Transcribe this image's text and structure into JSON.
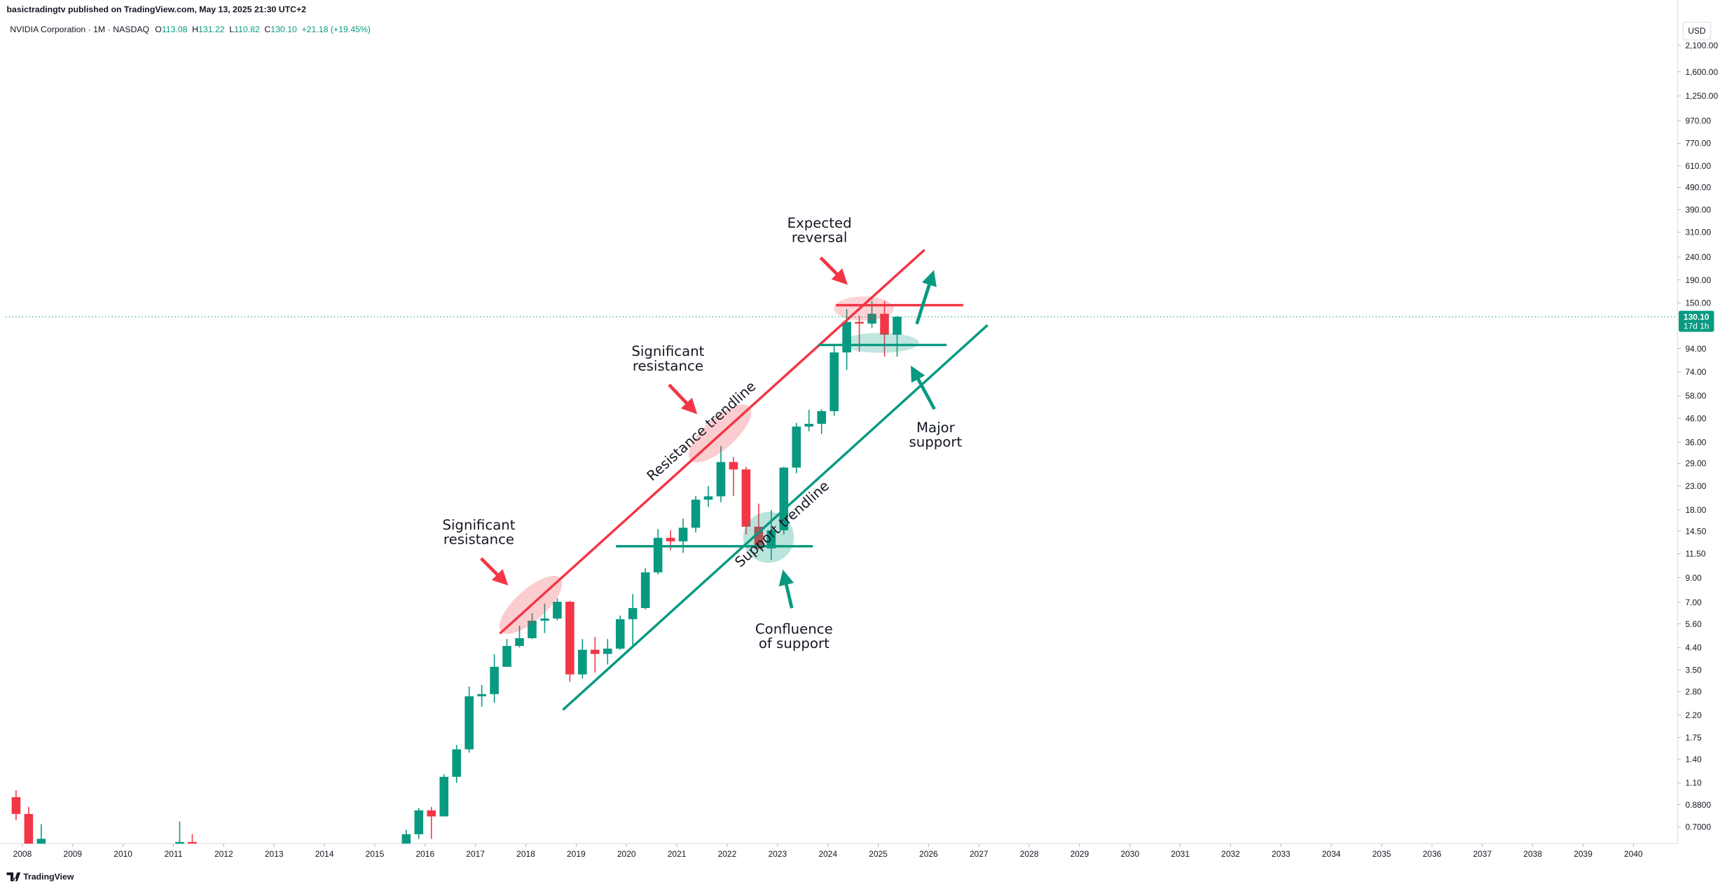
{
  "header": {
    "publisher": "basictradingtv published on TradingView.com, May 13, 2025 21:30 UTC+2"
  },
  "footer": {
    "brand": "TradingView"
  },
  "chart_data": {
    "type": "candlestick",
    "symbol": "NVIDIA Corporation · 1M · NASDAQ",
    "legend": [
      {
        "label": "O",
        "value": "113.08"
      },
      {
        "label": "H",
        "value": "131.22"
      },
      {
        "label": "L",
        "value": "110.82"
      },
      {
        "label": "C",
        "value": "130.10"
      }
    ],
    "change": "+21.18 (+19.45%)",
    "currency": "USD",
    "last_price": {
      "value": 130.1,
      "label": "130.10"
    },
    "countdown": "17d 1h",
    "up_color": "#089981",
    "down_color": "#f23645",
    "log_scale": true,
    "grid": false,
    "x": [
      "2007-10",
      "2008-01",
      "2008-04",
      "2011-01",
      "2011-04",
      "2015-07",
      "2015-10",
      "2016-01",
      "2016-04",
      "2016-07",
      "2016-10",
      "2017-01",
      "2017-04",
      "2017-07",
      "2017-10",
      "2018-01",
      "2018-04",
      "2018-07",
      "2018-10",
      "2019-01",
      "2019-04",
      "2019-07",
      "2019-10",
      "2020-01",
      "2020-04",
      "2020-07",
      "2020-10",
      "2021-01",
      "2021-04",
      "2021-07",
      "2021-10",
      "2022-01",
      "2022-04",
      "2022-07",
      "2022-10",
      "2023-01",
      "2023-04",
      "2023-07",
      "2023-10",
      "2024-01",
      "2024-04",
      "2024-07",
      "2024-10",
      "2025-01",
      "2025-04"
    ],
    "open": [
      0.95,
      0.8,
      0.55,
      0.55,
      0.6,
      0.55,
      0.65,
      0.83,
      0.78,
      1.17,
      1.55,
      2.67,
      2.73,
      3.61,
      4.47,
      4.84,
      5.79,
      5.92,
      7.03,
      3.34,
      4.3,
      4.12,
      4.35,
      5.88,
      6.59,
      9.5,
      13.53,
      13.05,
      15.0,
      20.0,
      20.7,
      29.41,
      27.26,
      15.16,
      12.14,
      14.61,
      27.78,
      42.3,
      43.5,
      49.52,
      90.36,
      123.54,
      121.44,
      134.29,
      108.38
    ],
    "high": [
      1.02,
      0.86,
      0.72,
      0.74,
      0.65,
      0.68,
      0.85,
      0.86,
      1.2,
      1.62,
      2.95,
      3.0,
      4.1,
      4.8,
      5.5,
      6.25,
      6.9,
      7.3,
      7.1,
      4.8,
      4.9,
      4.8,
      6.1,
      7.6,
      9.9,
      14.8,
      14.6,
      16.5,
      20.8,
      23.0,
      34.6,
      31.0,
      28.0,
      19.2,
      18.0,
      28.0,
      43.9,
      50.2,
      50.5,
      97.4,
      140.76,
      131.26,
      152.89,
      153.13,
      131.22
    ],
    "low": [
      0.75,
      0.5,
      0.5,
      0.5,
      0.45,
      0.52,
      0.62,
      0.62,
      0.8,
      1.1,
      1.5,
      2.4,
      2.5,
      3.7,
      4.4,
      4.8,
      5.1,
      5.8,
      3.1,
      3.2,
      3.4,
      3.7,
      4.3,
      4.5,
      6.5,
      9.3,
      11.9,
      11.6,
      14.3,
      18.6,
      19.5,
      20.8,
      14.0,
      12.0,
      10.8,
      14.0,
      26.2,
      40.3,
      39.2,
      47.3,
      75.6,
      90.69,
      116.0,
      86.62,
      86.62
    ],
    "close": [
      0.8,
      0.55,
      0.62,
      0.6,
      0.48,
      0.65,
      0.83,
      0.78,
      1.17,
      1.55,
      2.67,
      2.73,
      3.61,
      4.47,
      4.84,
      5.79,
      5.92,
      7.03,
      3.34,
      4.3,
      4.12,
      4.35,
      5.88,
      6.59,
      9.5,
      13.53,
      13.05,
      15.0,
      20.0,
      20.7,
      29.41,
      27.26,
      15.16,
      12.14,
      14.61,
      27.78,
      42.3,
      43.5,
      49.52,
      90.36,
      123.54,
      121.44,
      134.29,
      108.38,
      130.1
    ],
    "xlim": [
      "2007-09",
      "2040-11"
    ],
    "xticks": [
      2008,
      2009,
      2010,
      2011,
      2012,
      2013,
      2014,
      2015,
      2016,
      2017,
      2018,
      2019,
      2020,
      2021,
      2022,
      2023,
      2024,
      2025,
      2026,
      2027,
      2028,
      2029,
      2030,
      2031,
      2032,
      2033,
      2034,
      2035,
      2036,
      2037,
      2038,
      2039,
      2040
    ],
    "ylim": [
      0.59,
      2850
    ],
    "yticks": [
      {
        "value": 2100,
        "label": "2,100.00"
      },
      {
        "value": 1600,
        "label": "1,600.00"
      },
      {
        "value": 1250,
        "label": "1,250.00"
      },
      {
        "value": 970,
        "label": "970.00"
      },
      {
        "value": 770,
        "label": "770.00"
      },
      {
        "value": 610,
        "label": "610.00"
      },
      {
        "value": 490,
        "label": "490.00"
      },
      {
        "value": 390,
        "label": "390.00"
      },
      {
        "value": 310,
        "label": "310.00"
      },
      {
        "value": 240,
        "label": "240.00"
      },
      {
        "value": 190,
        "label": "190.00"
      },
      {
        "value": 150,
        "label": "150.00"
      },
      {
        "value": 94,
        "label": "94.00"
      },
      {
        "value": 74,
        "label": "74.00"
      },
      {
        "value": 58,
        "label": "58.00"
      },
      {
        "value": 46,
        "label": "46.00"
      },
      {
        "value": 36,
        "label": "36.00"
      },
      {
        "value": 29,
        "label": "29.00"
      },
      {
        "value": 23,
        "label": "23.00"
      },
      {
        "value": 18,
        "label": "18.00"
      },
      {
        "value": 14.5,
        "label": "14.50"
      },
      {
        "value": 11.5,
        "label": "11.50"
      },
      {
        "value": 9,
        "label": "9.00"
      },
      {
        "value": 7,
        "label": "7.00"
      },
      {
        "value": 5.6,
        "label": "5.60"
      },
      {
        "value": 4.4,
        "label": "4.40"
      },
      {
        "value": 3.5,
        "label": "3.50"
      },
      {
        "value": 2.8,
        "label": "2.80"
      },
      {
        "value": 2.2,
        "label": "2.20"
      },
      {
        "value": 1.75,
        "label": "1.75"
      },
      {
        "value": 1.4,
        "label": "1.40"
      },
      {
        "value": 1.1,
        "label": "1.10"
      },
      {
        "value": 0.88,
        "label": "0.8800"
      },
      {
        "value": 0.7,
        "label": "0.7000"
      }
    ],
    "annotations": {
      "resistance_2018": [
        "Significant",
        "resistance"
      ],
      "resistance_2021": [
        "Significant",
        "resistance"
      ],
      "expected_reversal": [
        "Expected",
        "reversal"
      ],
      "major_support": [
        "Major",
        "support"
      ],
      "confluence": [
        "Confluence",
        "of support"
      ],
      "resistance_trendline": "Resistance trendline",
      "support_trendline": "Support trendline"
    }
  }
}
